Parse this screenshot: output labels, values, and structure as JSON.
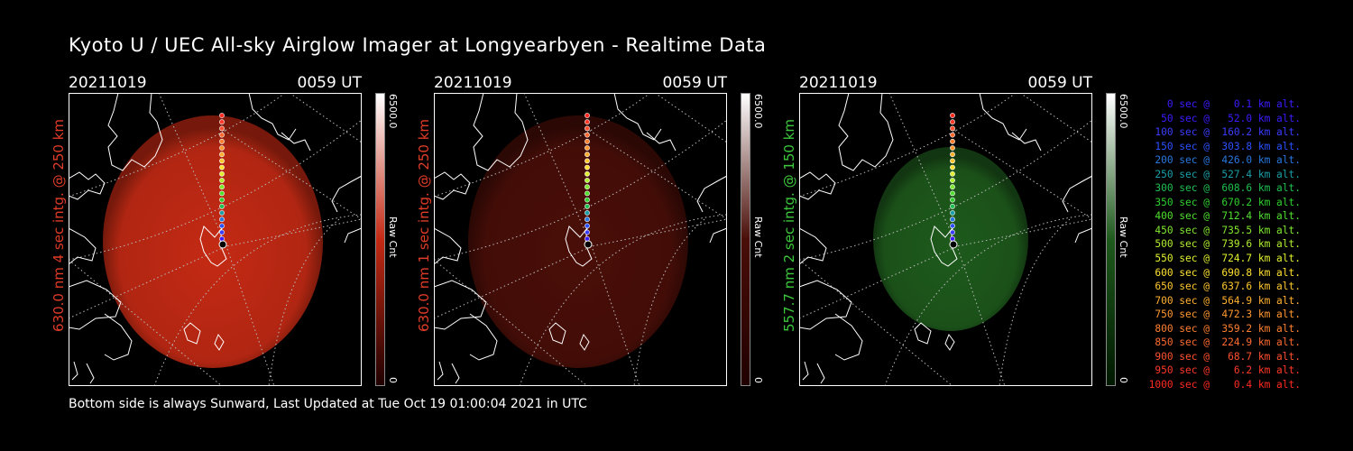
{
  "title": "Kyoto U / UEC All-sky Airglow Imager at Longyearbyen - Realtime Data",
  "footer": "Bottom side is always Sunward, Last Updated at Tue Oct 19 01:00:04 2021 in UTC",
  "panels": [
    {
      "date": "20211019",
      "time": "0059 UT",
      "side_label": "630.0 nm 4 sec intg. @ 250 km",
      "side_color": "#e03c28",
      "colorbar_max": "6500.0",
      "colorbar_unit": "Raw Cnt",
      "colorbar_min": "0",
      "glow": "#c42a14",
      "glow_opacity": 0.95,
      "colorbar_top": "#ffffff",
      "colorbar_bottom": "#200000"
    },
    {
      "date": "20211019",
      "time": "0059 UT",
      "side_label": "630.0 nm 1 sec intg. @ 250 km",
      "side_color": "#e03c28",
      "colorbar_max": "6500.0",
      "colorbar_unit": "Raw Cnt",
      "colorbar_min": "0",
      "glow": "#4a0e08",
      "glow_opacity": 0.95,
      "colorbar_top": "#ffffff",
      "colorbar_bottom": "#200000"
    },
    {
      "date": "20211019",
      "time": "0059 UT",
      "side_label": "557.7 nm 2 sec intg. @ 150 km",
      "side_color": "#3cc83c",
      "colorbar_max": "6500.0",
      "colorbar_unit": "Raw Cnt",
      "colorbar_min": "0",
      "glow": "#1e5a1c",
      "glow_opacity": 0.95,
      "colorbar_top": "#ffffff",
      "colorbar_bottom": "#001800"
    }
  ],
  "legend": [
    {
      "text": "   0 sec @    0.1 km alt.",
      "color": "#3a1cff"
    },
    {
      "text": "  50 sec @   52.0 km alt.",
      "color": "#3a1cff"
    },
    {
      "text": " 100 sec @  160.2 km alt.",
      "color": "#3a3cff"
    },
    {
      "text": " 150 sec @  303.8 km alt.",
      "color": "#2a50ff"
    },
    {
      "text": " 200 sec @  426.0 km alt.",
      "color": "#2878e0"
    },
    {
      "text": " 250 sec @  527.4 km alt.",
      "color": "#1aa0a8"
    },
    {
      "text": " 300 sec @  608.6 km alt.",
      "color": "#20c050"
    },
    {
      "text": " 350 sec @  670.2 km alt.",
      "color": "#30d030"
    },
    {
      "text": " 400 sec @  712.4 km alt.",
      "color": "#50e030"
    },
    {
      "text": " 450 sec @  735.5 km alt.",
      "color": "#80e830"
    },
    {
      "text": " 500 sec @  739.6 km alt.",
      "color": "#b0f030"
    },
    {
      "text": " 550 sec @  724.7 km alt.",
      "color": "#e0f030"
    },
    {
      "text": " 600 sec @  690.8 km alt.",
      "color": "#ffe030"
    },
    {
      "text": " 650 sec @  637.6 km alt.",
      "color": "#ffc830"
    },
    {
      "text": " 700 sec @  564.9 km alt.",
      "color": "#ffb030"
    },
    {
      "text": " 750 sec @  472.3 km alt.",
      "color": "#ff9830"
    },
    {
      "text": " 800 sec @  359.2 km alt.",
      "color": "#ff8030"
    },
    {
      "text": " 850 sec @  224.9 km alt.",
      "color": "#ff6a30"
    },
    {
      "text": " 900 sec @   68.7 km alt.",
      "color": "#ff5030"
    },
    {
      "text": " 950 sec @    6.2 km alt.",
      "color": "#ff3828"
    },
    {
      "text": "1000 sec @    0.4 km alt.",
      "color": "#ff2a20"
    }
  ]
}
